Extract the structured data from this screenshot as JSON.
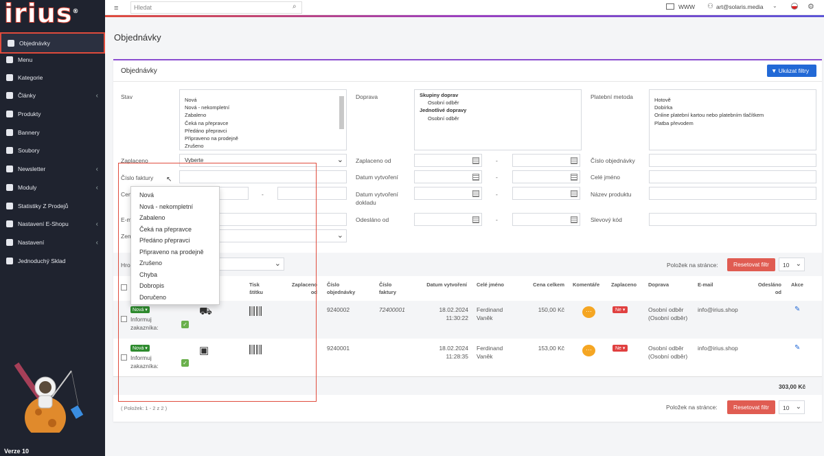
{
  "app": {
    "logo": "irius",
    "version": "Verze 10"
  },
  "sidebar": {
    "items": [
      {
        "label": "Objednávky",
        "chevron": ""
      },
      {
        "label": "Menu",
        "chevron": ""
      },
      {
        "label": "Kategorie",
        "chevron": ""
      },
      {
        "label": "Články",
        "chevron": "‹"
      },
      {
        "label": "Produkty",
        "chevron": ""
      },
      {
        "label": "Bannery",
        "chevron": ""
      },
      {
        "label": "Soubory",
        "chevron": ""
      },
      {
        "label": "Newsletter",
        "chevron": "‹"
      },
      {
        "label": "Moduly",
        "chevron": "‹"
      },
      {
        "label": "Statistiky Z Prodejů",
        "chevron": ""
      },
      {
        "label": "Nastavení E-Shopu",
        "chevron": "‹"
      },
      {
        "label": "Nastavení",
        "chevron": "‹"
      },
      {
        "label": "Jednoduchý Sklad",
        "chevron": ""
      }
    ]
  },
  "topbar": {
    "search_placeholder": "Hledat",
    "www": "WWW",
    "user": "art@solaris.media"
  },
  "page": {
    "title": "Objednávky"
  },
  "card": {
    "title": "Objednávky",
    "show_filters": "Ukázat filtry"
  },
  "filters": {
    "stav": "Stav",
    "stav_options": [
      "Nová",
      "Nová - nekompletní",
      "Zabaleno",
      "Čeká na přepravce",
      "Předáno přepravci",
      "Připraveno na prodejně",
      "Zrušeno"
    ],
    "doprava": "Doprava",
    "doprava_options": [
      "Skupiny doprav",
      "Osobní odběr",
      "Jednotlivé dopravy",
      "Osobní odběr"
    ],
    "platebni": "Platební metoda",
    "platebni_options": [
      "Hotově",
      "Dobírka",
      "Online platební kartou nebo platebním tlačítkem",
      "Platba převodem"
    ],
    "zaplaceno": "Zaplaceno",
    "zaplaceno_value": "Vyberte",
    "zaplaceno_od": "Zaplaceno od",
    "cislo_obj": "Číslo objednávky",
    "cislo_faktury": "Číslo faktury",
    "datum_vytvoreni": "Datum vytvoření",
    "cele_jmeno": "Celé jméno",
    "cena_short": "Cen",
    "datum_dokladu": "Datum vytvoření dokladu",
    "nazev_produktu": "Název produktu",
    "email_short": "E-m",
    "odeslano_od": "Odesláno od",
    "slevovy_kod": "Slevový kód",
    "zeme_short": "Zem",
    "dash": "-"
  },
  "table": {
    "bulk_short": "Hro",
    "per_page": "Položek na stránce:",
    "reset": "Resetovat filtr",
    "per_page_value": "10",
    "headers": [
      "Tisk štítku",
      "Zaplaceno od",
      "Číslo objednávky",
      "Číslo faktury",
      "Datum vytvoření",
      "Celé jméno",
      "Cena celkem",
      "Komentáře",
      "Zaplaceno",
      "Doprava",
      "E-mail",
      "Odesláno od",
      "Akce"
    ],
    "header_partial": "i",
    "rows": [
      {
        "status": "Nová ▾",
        "inform": "Informuj zakazníka:",
        "order": "9240002",
        "invoice": "72400001",
        "date": "18.02.2024",
        "time": "11:30:22",
        "name1": "Ferdinand",
        "name2": "Vaněk",
        "price": "150,00 Kč",
        "paid": "Ne ▾",
        "shipping": "Osobní odběr (Osobní odběr)",
        "email": "info@irius.shop"
      },
      {
        "status": "Nová ▾",
        "inform": "Informuj zakazníka:",
        "order": "9240001",
        "invoice": "",
        "date": "18.02.2024",
        "time": "11:28:35",
        "name1": "Ferdinand",
        "name2": "Vaněk",
        "price": "153,00 Kč",
        "paid": "Ne ▾",
        "shipping": "Osobní odběr (Osobní odběr)",
        "email": "info@irius.shop"
      }
    ],
    "total": "303,00 Kč",
    "pagination": "( Položek: 1 - 2 z 2 )"
  },
  "dropdown": {
    "options": [
      "Nová",
      "Nová - nekompletní",
      "Zabaleno",
      "Čeká na přepravce",
      "Předáno přepravci",
      "Připraveno na prodejně",
      "Zrušeno",
      "Chyba",
      "Dobropis",
      "Doručeno"
    ]
  },
  "colors": {
    "accent": "#2269d6",
    "danger": "#e05c52",
    "sidebar": "#1f232f"
  }
}
